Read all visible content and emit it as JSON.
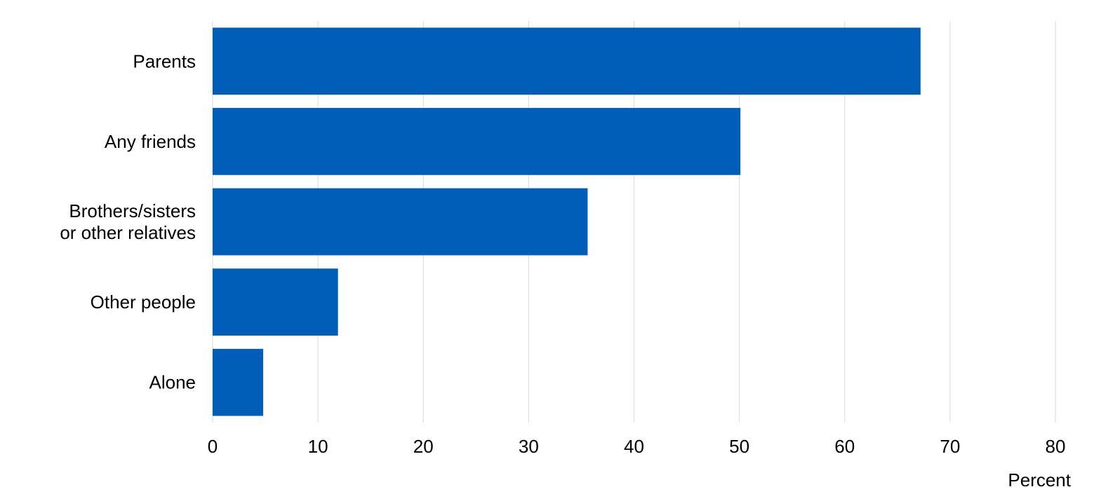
{
  "chart_data": {
    "type": "bar",
    "orientation": "horizontal",
    "categories": [
      "Parents",
      "Any friends",
      "Brothers/sisters or other relatives",
      "Other people",
      "Alone"
    ],
    "category_label_lines": [
      [
        "Parents"
      ],
      [
        "Any friends"
      ],
      [
        "Brothers/sisters",
        "or other relatives"
      ],
      [
        "Other people"
      ],
      [
        "Alone"
      ]
    ],
    "values": [
      67.2,
      50.1,
      35.6,
      11.9,
      4.8
    ],
    "xlabel": "Percent",
    "ylabel": "",
    "xlim": [
      0,
      80
    ],
    "xticks": [
      0,
      10,
      20,
      30,
      40,
      50,
      60,
      70,
      80
    ],
    "grid": "vertical",
    "legend": "none",
    "bar_color": "#005EB8",
    "grid_color": "#D9D9D9"
  }
}
